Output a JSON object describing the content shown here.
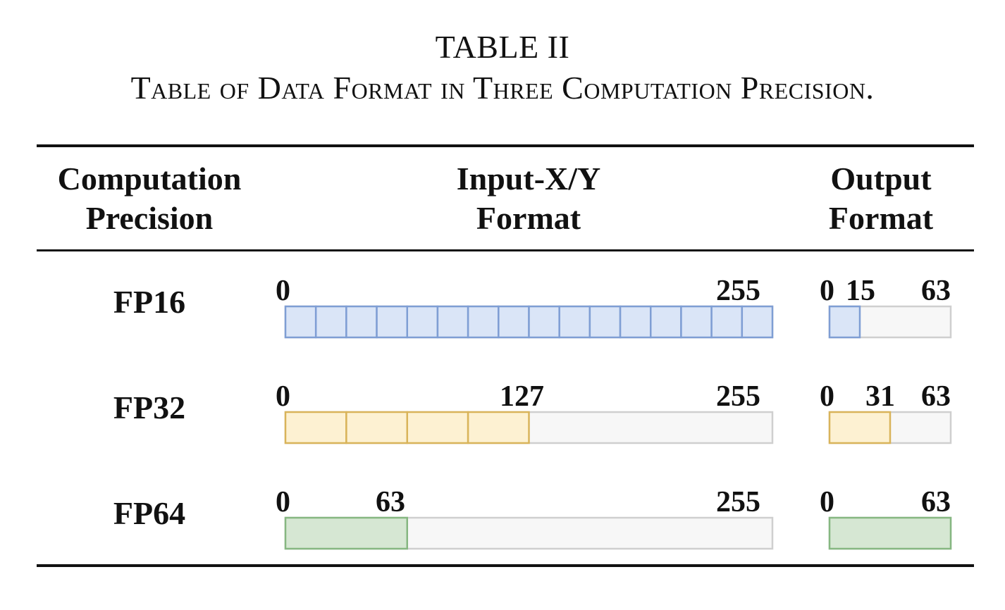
{
  "caption": {
    "number": "TABLE II",
    "text": "Table of Data Format in Three Computation Precision."
  },
  "headers": {
    "precision": [
      "Computation",
      "Precision"
    ],
    "input": [
      "Input-X/Y",
      "Format"
    ],
    "output": [
      "Output",
      "Format"
    ]
  },
  "colors": {
    "fp16_fill": "#dae5f7",
    "fp16_stroke": "#7f9ed4",
    "fp32_fill": "#fdf1d2",
    "fp32_stroke": "#d9b45a",
    "fp64_fill": "#d6e7d3",
    "fp64_stroke": "#86b781",
    "empty_fill": "#f7f7f7",
    "empty_stroke": "#cfcfcf"
  },
  "rows": [
    {
      "precision": "FP16",
      "input": {
        "labels": [
          "0",
          "255"
        ],
        "used_fraction": 1.0,
        "cells": 16
      },
      "output": {
        "labels": [
          "0",
          "15",
          "63"
        ],
        "used_fraction": 0.25,
        "cells": 1
      }
    },
    {
      "precision": "FP32",
      "input": {
        "labels": [
          "0",
          "127",
          "255"
        ],
        "used_fraction": 0.5,
        "cells": 4
      },
      "output": {
        "labels": [
          "0",
          "31",
          "63"
        ],
        "used_fraction": 0.5,
        "cells": 1
      }
    },
    {
      "precision": "FP64",
      "input": {
        "labels": [
          "0",
          "63",
          "255"
        ],
        "used_fraction": 0.25,
        "cells": 1
      },
      "output": {
        "labels": [
          "0",
          "63"
        ],
        "used_fraction": 1.0,
        "cells": 1
      }
    }
  ]
}
